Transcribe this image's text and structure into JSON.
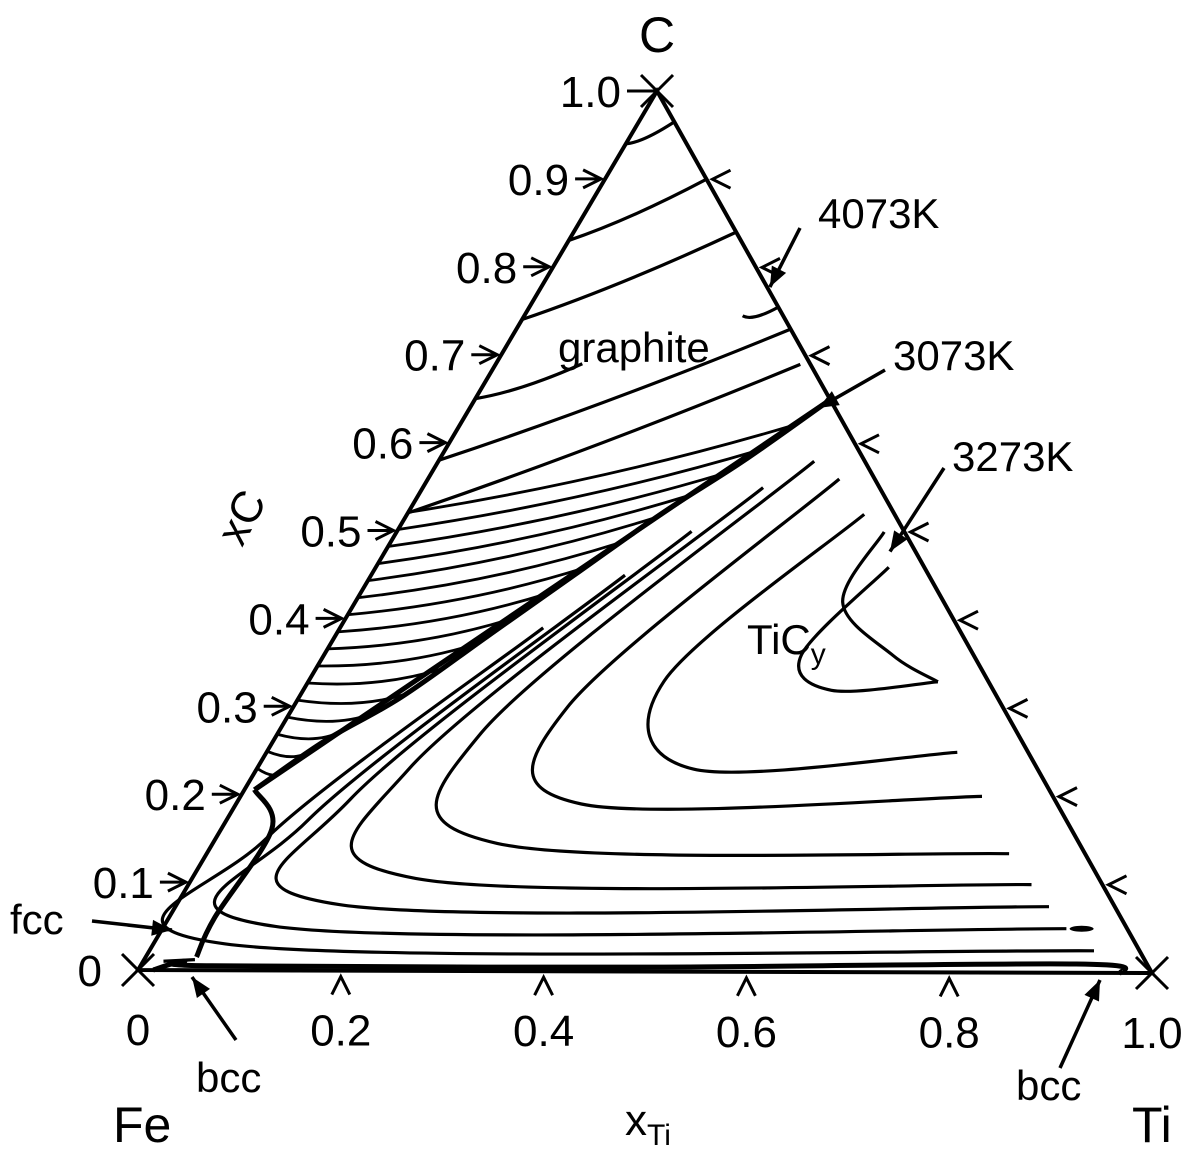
{
  "chart_data": {
    "type": "ternary",
    "components": [
      "Fe",
      "Ti",
      "C"
    ],
    "vertex_labels": {
      "left": "Fe",
      "right": "Ti",
      "top": "C"
    },
    "axes": {
      "bottom": {
        "title_main": "x",
        "title_sub": "Ti",
        "ticks": [
          0,
          0.2,
          0.4,
          0.6,
          0.8,
          1.0
        ],
        "tick_labels": [
          "0",
          "0.2",
          "0.4",
          "0.6",
          "0.8",
          "1.0"
        ]
      },
      "left": {
        "title": "xC",
        "ticks": [
          0,
          0.1,
          0.2,
          0.3,
          0.4,
          0.5,
          0.6,
          0.7,
          0.8,
          0.9,
          1.0
        ],
        "tick_labels": [
          "0",
          "0.1",
          "0.2",
          "0.3",
          "0.4",
          "0.5",
          "0.6",
          "0.7",
          "0.8",
          "0.9",
          "1.0"
        ]
      }
    },
    "phase_labels": {
      "graphite": "graphite",
      "tic_main": "TiC",
      "tic_sub": "y",
      "fcc": "fcc",
      "bcc_left": "bcc",
      "bcc_right": "bcc"
    },
    "annotations": [
      "4073K",
      "3073K",
      "3273K"
    ],
    "annotation_targets": [
      {
        "label": "4073K",
        "xTi": 0.22,
        "xC": 0.78
      },
      {
        "label": "3073K",
        "xTi": 0.335,
        "xC": 0.645
      },
      {
        "label": "3273K",
        "xTi": 0.49,
        "xC": 0.48
      }
    ],
    "three_phase_triangle": {
      "carbide_vertex": {
        "xTi": 0.35,
        "xC": 0.65
      },
      "liquid_vertex": {
        "xTi": 0.01,
        "xC": 0.205
      }
    },
    "graphite_boundary": [
      {
        "xTi": 0.01,
        "xC": 0.205
      },
      {
        "xTi": 0.05,
        "xC": 0.26
      },
      {
        "xTi": 0.1,
        "xC": 0.31
      },
      {
        "xTi": 0.15,
        "xC": 0.38
      },
      {
        "xTi": 0.2,
        "xC": 0.45
      },
      {
        "xTi": 0.25,
        "xC": 0.52
      },
      {
        "xTi": 0.3,
        "xC": 0.58
      },
      {
        "xTi": 0.35,
        "xC": 0.65
      }
    ],
    "graphite_isotherms": [
      {
        "from": {
          "xTi": 0.0,
          "xC": 0.94
        },
        "to": {
          "xTi": 0.035,
          "xC": 0.965
        }
      },
      {
        "from": {
          "xTi": 0.0,
          "xC": 0.83
        },
        "to": {
          "xTi": 0.1,
          "xC": 0.9
        }
      },
      {
        "from": {
          "xTi": 0.0,
          "xC": 0.74
        },
        "to": {
          "xTi": 0.16,
          "xC": 0.84
        }
      },
      {
        "from": {
          "xTi": 0.0,
          "xC": 0.65
        },
        "to": {
          "xTi": 0.085,
          "xC": 0.69
        }
      },
      {
        "from": {
          "xTi": 0.215,
          "xC": 0.745
        },
        "to": {
          "xTi": 0.245,
          "xC": 0.755
        }
      },
      {
        "from": {
          "xTi": 0.0,
          "xC": 0.58
        },
        "to": {
          "xTi": 0.27,
          "xC": 0.73
        }
      },
      {
        "from": {
          "xTi": 0.0,
          "xC": 0.52
        },
        "to": {
          "xTi": 0.3,
          "xC": 0.69
        }
      }
    ],
    "tie_line_count": 16,
    "tic_isotherms": [
      [
        {
          "xTi": 0.505,
          "xC": 0.46
        },
        {
          "xTi": 0.47,
          "xC": 0.36
        },
        {
          "xTi": 0.52,
          "xC": 0.32
        },
        {
          "xTi": 0.62,
          "xC": 0.33
        }
      ],
      [
        {
          "xTi": 0.45,
          "xC": 0.52
        },
        {
          "xTi": 0.35,
          "xC": 0.33
        },
        {
          "xTi": 0.43,
          "xC": 0.23
        },
        {
          "xTi": 0.68,
          "xC": 0.25
        }
      ],
      [
        {
          "xTi": 0.405,
          "xC": 0.56
        },
        {
          "xTi": 0.27,
          "xC": 0.3
        },
        {
          "xTi": 0.34,
          "xC": 0.19
        },
        {
          "xTi": 0.73,
          "xC": 0.2
        }
      ],
      [
        {
          "xTi": 0.37,
          "xC": 0.58
        },
        {
          "xTi": 0.2,
          "xC": 0.27
        },
        {
          "xTi": 0.28,
          "xC": 0.145
        },
        {
          "xTi": 0.79,
          "xC": 0.135
        }
      ],
      [
        {
          "xTi": 0.335,
          "xC": 0.55
        },
        {
          "xTi": 0.15,
          "xC": 0.23
        },
        {
          "xTi": 0.22,
          "xC": 0.105
        },
        {
          "xTi": 0.83,
          "xC": 0.1
        }
      ],
      [
        {
          "xTi": 0.29,
          "xC": 0.5
        },
        {
          "xTi": 0.11,
          "xC": 0.195
        },
        {
          "xTi": 0.16,
          "xC": 0.075
        },
        {
          "xTi": 0.86,
          "xC": 0.075
        }
      ],
      [
        {
          "xTi": 0.25,
          "xC": 0.45
        },
        {
          "xTi": 0.08,
          "xC": 0.17
        },
        {
          "xTi": 0.11,
          "xC": 0.05
        },
        {
          "xTi": 0.89,
          "xC": 0.05
        }
      ],
      [
        {
          "xTi": 0.2,
          "xC": 0.39
        },
        {
          "xTi": 0.05,
          "xC": 0.15
        },
        {
          "xTi": 0.07,
          "xC": 0.03
        },
        {
          "xTi": 0.93,
          "xC": 0.025
        }
      ]
    ],
    "bcc_boundary": [
      {
        "xTi": 0.015,
        "xC": 0.0
      },
      {
        "xTi": 0.04,
        "xC": 0.01
      },
      {
        "xTi": 0.07,
        "xC": 0.005
      },
      {
        "xTi": 0.5,
        "xC": 0.005
      },
      {
        "xTi": 0.92,
        "xC": 0.01
      },
      {
        "xTi": 0.97,
        "xC": 0.0
      }
    ],
    "grid": false,
    "legend": "none"
  }
}
